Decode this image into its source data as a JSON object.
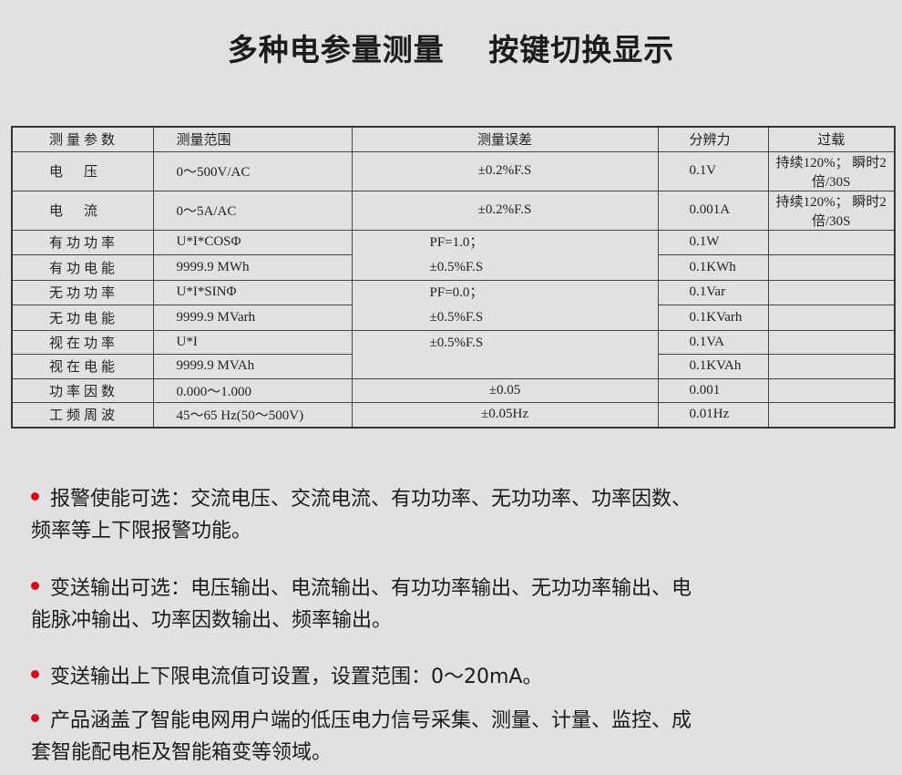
{
  "title": {
    "left": "多种电参量测量",
    "right": "按键切换显示"
  },
  "table": {
    "headers": [
      "测量参数",
      "测量范围",
      "测量误差",
      "分辨力",
      "过载"
    ],
    "rows": [
      {
        "param": "电　压",
        "range": "0～500V/AC",
        "error": "±0.2%F.S",
        "resolution": "0.1V",
        "overload": "持续120%； 瞬时2倍/30S"
      },
      {
        "param": "电　流",
        "range": "0～5A/AC",
        "error": "±0.2%F.S",
        "resolution": "0.001A",
        "overload": "持续120%； 瞬时2倍/30S"
      },
      {
        "param": "有功功率",
        "range": "U*I*COSΦ",
        "error": "PF=1.0；",
        "resolution": "0.1W",
        "overload": ""
      },
      {
        "param": "有功电能",
        "range": "9999.9 MWh",
        "error": "±0.5%F.S",
        "resolution": "0.1KWh",
        "overload": ""
      },
      {
        "param": "无功功率",
        "range": "U*I*SINΦ",
        "error": "PF=0.0；",
        "resolution": "0.1Var",
        "overload": ""
      },
      {
        "param": "无功电能",
        "range": "9999.9 MVarh",
        "error": "±0.5%F.S",
        "resolution": "0.1KVarh",
        "overload": ""
      },
      {
        "param": "视在功率",
        "range": "U*I",
        "error": "±0.5%F.S",
        "resolution": "0.1VA",
        "overload": ""
      },
      {
        "param": "视在电能",
        "range": "9999.9 MVAh",
        "error": "",
        "resolution": "0.1KVAh",
        "overload": ""
      },
      {
        "param": "功率因数",
        "range": "0.000～1.000",
        "error": "±0.05",
        "resolution": "0.001",
        "overload": ""
      },
      {
        "param": "工频周波",
        "range": "45～65 Hz(50～500V)",
        "error": "±0.05Hz",
        "resolution": "0.01Hz",
        "overload": ""
      }
    ]
  },
  "bullets": [
    {
      "line1": "报警使能可选：交流电压、交流电流、有功功率、无功功率、功率因数、",
      "line2": "频率等上下限报警功能。"
    },
    {
      "line1": "变送输出可选：电压输出、电流输出、有功功率输出、无功功率输出、电",
      "line2": "能脉冲输出、功率因数输出、频率输出。"
    },
    {
      "line1": "变送输出上下限电流值可设置，设置范围：0～20mA。",
      "line2": ""
    },
    {
      "line1": "产品涵盖了智能电网用户端的低压电力信号采集、测量、计量、监控、成",
      "line2": "套智能配电柜及智能箱变等领域。"
    }
  ],
  "colors": {
    "bullet": "#d0101a",
    "background": "#e2e0e0"
  }
}
